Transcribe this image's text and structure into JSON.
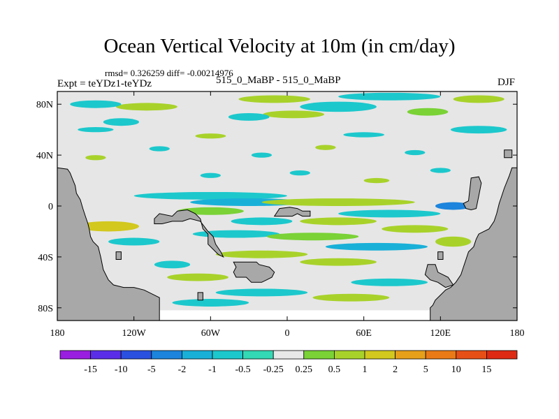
{
  "chart_data": {
    "type": "heatmap",
    "title": "Ocean Vertical Velocity at 10m (in cm/day)",
    "stats_line": "rmsd= 0.326259 diff= -0.00214976",
    "left_label": "Expt = teYDz1-teYDz",
    "center_label": "515_0_MaBP - 515_0_MaBP",
    "right_label": "DJF",
    "x_ticks": [
      "180",
      "120W",
      "60W",
      "0",
      "60E",
      "120E",
      "180"
    ],
    "x_tick_values": [
      -180,
      -120,
      -60,
      0,
      60,
      120,
      180
    ],
    "y_ticks": [
      "80N",
      "40N",
      "0",
      "40S",
      "80S"
    ],
    "y_tick_values": [
      80,
      40,
      0,
      -40,
      -80
    ],
    "xlim": [
      -180,
      180
    ],
    "ylim": [
      -90,
      90
    ],
    "colorbar": {
      "labels": [
        "-15",
        "-10",
        "-5",
        "-2",
        "-1",
        "-0.5",
        "-0.25",
        "0.25",
        "0.5",
        "1",
        "2",
        "5",
        "10",
        "15"
      ],
      "colors": [
        "#9a1ee0",
        "#5a2ee8",
        "#2a50e0",
        "#1c84dc",
        "#19b0d8",
        "#1cc8cc",
        "#33d8b4",
        "#e8e8e8",
        "#7ad236",
        "#a8d22a",
        "#d2c81e",
        "#e6a01a",
        "#ea7a16",
        "#e65016",
        "#de2a12"
      ]
    },
    "colors": {
      "land": "#a8a8a8",
      "background": "#e6e6e6",
      "nodata": "#ffffff"
    },
    "land": [
      {
        "name": "western-landmass",
        "poly": [
          [
            -180,
            -90
          ],
          [
            -180,
            30
          ],
          [
            -172,
            29
          ],
          [
            -170,
            26
          ],
          [
            -168,
            21
          ],
          [
            -166,
            16
          ],
          [
            -165,
            10
          ],
          [
            -162,
            5
          ],
          [
            -160,
            -2
          ],
          [
            -158,
            -8
          ],
          [
            -156,
            -14
          ],
          [
            -155,
            -18
          ],
          [
            -154,
            -24
          ],
          [
            -152,
            -28
          ],
          [
            -148,
            -32
          ],
          [
            -146,
            -40
          ],
          [
            -144,
            -50
          ],
          [
            -140,
            -58
          ],
          [
            -136,
            -62
          ],
          [
            -128,
            -64
          ],
          [
            -120,
            -64
          ],
          [
            -112,
            -66
          ],
          [
            -104,
            -70
          ],
          [
            -100,
            -72
          ],
          [
            -100,
            -90
          ]
        ]
      },
      {
        "name": "west-central-block",
        "poly": [
          [
            -104,
            -10
          ],
          [
            -100,
            -6
          ],
          [
            -90,
            -8
          ],
          [
            -86,
            -4
          ],
          [
            -78,
            -3
          ],
          [
            -72,
            -6
          ],
          [
            -68,
            -10
          ],
          [
            -66,
            -18
          ],
          [
            -62,
            -22
          ],
          [
            -62,
            -30
          ],
          [
            -58,
            -34
          ],
          [
            -54,
            -38
          ],
          [
            -50,
            -40
          ],
          [
            -52,
            -36
          ],
          [
            -56,
            -30
          ],
          [
            -58,
            -24
          ],
          [
            -62,
            -20
          ],
          [
            -68,
            -12
          ],
          [
            -76,
            -10
          ],
          [
            -82,
            -12
          ],
          [
            -90,
            -12
          ],
          [
            -98,
            -14
          ],
          [
            -104,
            -14
          ]
        ]
      },
      {
        "name": "equatorial-island",
        "poly": [
          [
            -10,
            -8
          ],
          [
            -6,
            -2
          ],
          [
            2,
            -1
          ],
          [
            8,
            -2
          ],
          [
            12,
            -4
          ],
          [
            18,
            -4
          ],
          [
            18,
            -8
          ],
          [
            12,
            -8
          ],
          [
            8,
            -6
          ],
          [
            4,
            -8
          ]
        ]
      },
      {
        "name": "south-central-block",
        "poly": [
          [
            -42,
            -44
          ],
          [
            -24,
            -44
          ],
          [
            -22,
            -46
          ],
          [
            -14,
            -48
          ],
          [
            -10,
            -52
          ],
          [
            -12,
            -56
          ],
          [
            -16,
            -58
          ],
          [
            -20,
            -60
          ],
          [
            -28,
            -60
          ],
          [
            -32,
            -56
          ],
          [
            -40,
            -56
          ],
          [
            -42,
            -52
          ],
          [
            -40,
            -48
          ]
        ]
      },
      {
        "name": "eastern-landmass",
        "poly": [
          [
            180,
            30
          ],
          [
            176,
            30
          ],
          [
            174,
            24
          ],
          [
            170,
            14
          ],
          [
            168,
            8
          ],
          [
            166,
            2
          ],
          [
            164,
            -6
          ],
          [
            162,
            -12
          ],
          [
            158,
            -18
          ],
          [
            154,
            -20
          ],
          [
            150,
            -22
          ],
          [
            148,
            -26
          ],
          [
            146,
            -32
          ],
          [
            142,
            -36
          ],
          [
            140,
            -42
          ],
          [
            138,
            -48
          ],
          [
            136,
            -54
          ],
          [
            132,
            -60
          ],
          [
            128,
            -64
          ],
          [
            124,
            -66
          ],
          [
            120,
            -70
          ],
          [
            116,
            -74
          ],
          [
            114,
            -78
          ],
          [
            112,
            -80
          ],
          [
            112,
            -90
          ],
          [
            180,
            -90
          ]
        ]
      },
      {
        "name": "eastern-peninsula",
        "poly": [
          [
            144,
            22
          ],
          [
            150,
            23
          ],
          [
            152,
            18
          ],
          [
            150,
            8
          ],
          [
            148,
            -2
          ],
          [
            144,
            -3
          ],
          [
            140,
            -2
          ],
          [
            138,
            2
          ],
          [
            142,
            4
          ]
        ]
      },
      {
        "name": "northeast-islet",
        "poly": [
          [
            170,
            44
          ],
          [
            176,
            44
          ],
          [
            176,
            38
          ],
          [
            170,
            38
          ]
        ]
      },
      {
        "name": "southeast-spur",
        "poly": [
          [
            110,
            -46
          ],
          [
            116,
            -46
          ],
          [
            118,
            -52
          ],
          [
            126,
            -56
          ],
          [
            130,
            -62
          ],
          [
            124,
            -64
          ],
          [
            118,
            -60
          ],
          [
            112,
            -58
          ],
          [
            108,
            -54
          ]
        ]
      },
      {
        "name": "southeast-islet",
        "poly": [
          [
            118,
            -36
          ],
          [
            122,
            -36
          ],
          [
            122,
            -42
          ],
          [
            118,
            -42
          ]
        ]
      },
      {
        "name": "southwest-islet",
        "poly": [
          [
            -134,
            -36
          ],
          [
            -130,
            -36
          ],
          [
            -130,
            -42
          ],
          [
            -134,
            -42
          ]
        ]
      },
      {
        "name": "south-islet",
        "poly": [
          [
            -70,
            -68
          ],
          [
            -66,
            -68
          ],
          [
            -66,
            -74
          ],
          [
            -70,
            -74
          ]
        ]
      }
    ],
    "nodata_regions": [
      {
        "name": "southern-white-band",
        "poly": [
          [
            -100,
            -82
          ],
          [
            112,
            -82
          ],
          [
            112,
            -90
          ],
          [
            -100,
            -90
          ]
        ]
      }
    ],
    "blobs": [
      {
        "lon": -10,
        "lat": 84,
        "rx": 28,
        "ry": 3,
        "lvl": 9
      },
      {
        "lon": 80,
        "lat": 86,
        "rx": 40,
        "ry": 3,
        "lvl": 5
      },
      {
        "lon": 150,
        "lat": 84,
        "rx": 20,
        "ry": 3,
        "lvl": 9
      },
      {
        "lon": 40,
        "lat": 78,
        "rx": 30,
        "ry": 4,
        "lvl": 5
      },
      {
        "lon": -110,
        "lat": 78,
        "rx": 24,
        "ry": 3,
        "lvl": 9
      },
      {
        "lon": -150,
        "lat": 80,
        "rx": 20,
        "ry": 3,
        "lvl": 5
      },
      {
        "lon": 5,
        "lat": 72,
        "rx": 24,
        "ry": 3,
        "lvl": 9
      },
      {
        "lon": 110,
        "lat": 74,
        "rx": 16,
        "ry": 3,
        "lvl": 8
      },
      {
        "lon": -30,
        "lat": 70,
        "rx": 16,
        "ry": 3,
        "lvl": 5
      },
      {
        "lon": -130,
        "lat": 66,
        "rx": 14,
        "ry": 3,
        "lvl": 5
      },
      {
        "lon": 150,
        "lat": 60,
        "rx": 22,
        "ry": 3,
        "lvl": 5
      },
      {
        "lon": -150,
        "lat": 60,
        "rx": 14,
        "ry": 2,
        "lvl": 5
      },
      {
        "lon": -60,
        "lat": 55,
        "rx": 12,
        "ry": 2,
        "lvl": 9
      },
      {
        "lon": 60,
        "lat": 56,
        "rx": 16,
        "ry": 2,
        "lvl": 5
      },
      {
        "lon": -100,
        "lat": 45,
        "rx": 8,
        "ry": 2,
        "lvl": 5
      },
      {
        "lon": 30,
        "lat": 46,
        "rx": 8,
        "ry": 2,
        "lvl": 9
      },
      {
        "lon": -20,
        "lat": 40,
        "rx": 8,
        "ry": 2,
        "lvl": 5
      },
      {
        "lon": 100,
        "lat": 42,
        "rx": 8,
        "ry": 2,
        "lvl": 5
      },
      {
        "lon": -150,
        "lat": 38,
        "rx": 8,
        "ry": 2,
        "lvl": 9
      },
      {
        "lon": 10,
        "lat": 26,
        "rx": 8,
        "ry": 2,
        "lvl": 5
      },
      {
        "lon": -60,
        "lat": 24,
        "rx": 8,
        "ry": 2,
        "lvl": 5
      },
      {
        "lon": 70,
        "lat": 20,
        "rx": 10,
        "ry": 2,
        "lvl": 9
      },
      {
        "lon": 120,
        "lat": 28,
        "rx": 8,
        "ry": 2,
        "lvl": 5
      },
      {
        "lon": -60,
        "lat": 8,
        "rx": 60,
        "ry": 3,
        "lvl": 5
      },
      {
        "lon": -30,
        "lat": 3,
        "rx": 46,
        "ry": 3,
        "lvl": 4
      },
      {
        "lon": 40,
        "lat": 3,
        "rx": 60,
        "ry": 3,
        "lvl": 9
      },
      {
        "lon": 130,
        "lat": 0,
        "rx": 14,
        "ry": 3,
        "lvl": 3
      },
      {
        "lon": -60,
        "lat": -4,
        "rx": 26,
        "ry": 3,
        "lvl": 8
      },
      {
        "lon": 80,
        "lat": -6,
        "rx": 40,
        "ry": 3,
        "lvl": 5
      },
      {
        "lon": 40,
        "lat": -12,
        "rx": 30,
        "ry": 3,
        "lvl": 9
      },
      {
        "lon": -20,
        "lat": -12,
        "rx": 24,
        "ry": 3,
        "lvl": 5
      },
      {
        "lon": 100,
        "lat": -18,
        "rx": 26,
        "ry": 3,
        "lvl": 9
      },
      {
        "lon": -140,
        "lat": -16,
        "rx": 24,
        "ry": 4,
        "lvl": 10
      },
      {
        "lon": -40,
        "lat": -22,
        "rx": 34,
        "ry": 3,
        "lvl": 5
      },
      {
        "lon": 20,
        "lat": -24,
        "rx": 36,
        "ry": 3,
        "lvl": 8
      },
      {
        "lon": -120,
        "lat": -28,
        "rx": 20,
        "ry": 3,
        "lvl": 5
      },
      {
        "lon": 70,
        "lat": -32,
        "rx": 40,
        "ry": 3,
        "lvl": 4
      },
      {
        "lon": -20,
        "lat": -38,
        "rx": 36,
        "ry": 3,
        "lvl": 9
      },
      {
        "lon": 130,
        "lat": -28,
        "rx": 14,
        "ry": 4,
        "lvl": 9
      },
      {
        "lon": 40,
        "lat": -44,
        "rx": 30,
        "ry": 3,
        "lvl": 9
      },
      {
        "lon": -90,
        "lat": -46,
        "rx": 14,
        "ry": 3,
        "lvl": 5
      },
      {
        "lon": -70,
        "lat": -56,
        "rx": 24,
        "ry": 3,
        "lvl": 9
      },
      {
        "lon": 80,
        "lat": -60,
        "rx": 30,
        "ry": 3,
        "lvl": 5
      },
      {
        "lon": -20,
        "lat": -68,
        "rx": 36,
        "ry": 3,
        "lvl": 5
      },
      {
        "lon": 50,
        "lat": -72,
        "rx": 30,
        "ry": 3,
        "lvl": 9
      },
      {
        "lon": -60,
        "lat": -76,
        "rx": 30,
        "ry": 3,
        "lvl": 5
      }
    ]
  }
}
